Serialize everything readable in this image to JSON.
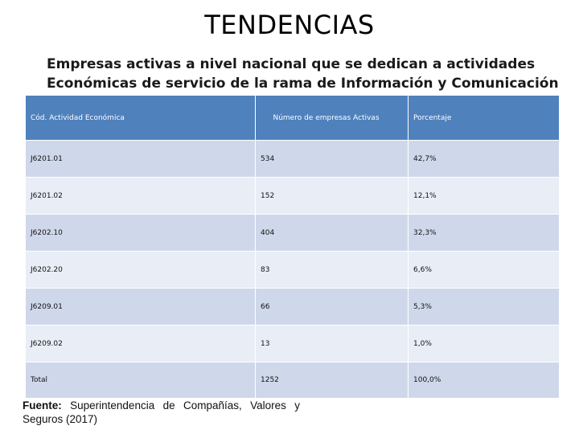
{
  "title": "TENDENCIAS",
  "subtitle": {
    "line1": "Empresas activas a nivel nacional que se dedican a actividades",
    "line2": "Económicas de servicio de la rama de Información y Comunicación"
  },
  "table": {
    "headers": {
      "code": "Cód. Actividad Económica",
      "count": "Número de empresas Activas",
      "percent": "Porcentaje"
    },
    "rows": [
      {
        "code": "J6201.01",
        "count": "534",
        "percent": "42,7%"
      },
      {
        "code": "J6201.02",
        "count": "152",
        "percent": "12,1%"
      },
      {
        "code": "J6202.10",
        "count": "404",
        "percent": "32,3%"
      },
      {
        "code": "J6202.20",
        "count": "83",
        "percent": "6,6%"
      },
      {
        "code": "J6209.01",
        "count": "66",
        "percent": "5,3%"
      },
      {
        "code": "J6209.02",
        "count": "13",
        "percent": "1,0%"
      },
      {
        "code": "Total",
        "count": "1252",
        "percent": "100,0%"
      }
    ]
  },
  "source": {
    "label": "Fuente:",
    "text": "Superintendencia de Compañías, Valores y Seguros (2017)"
  }
}
